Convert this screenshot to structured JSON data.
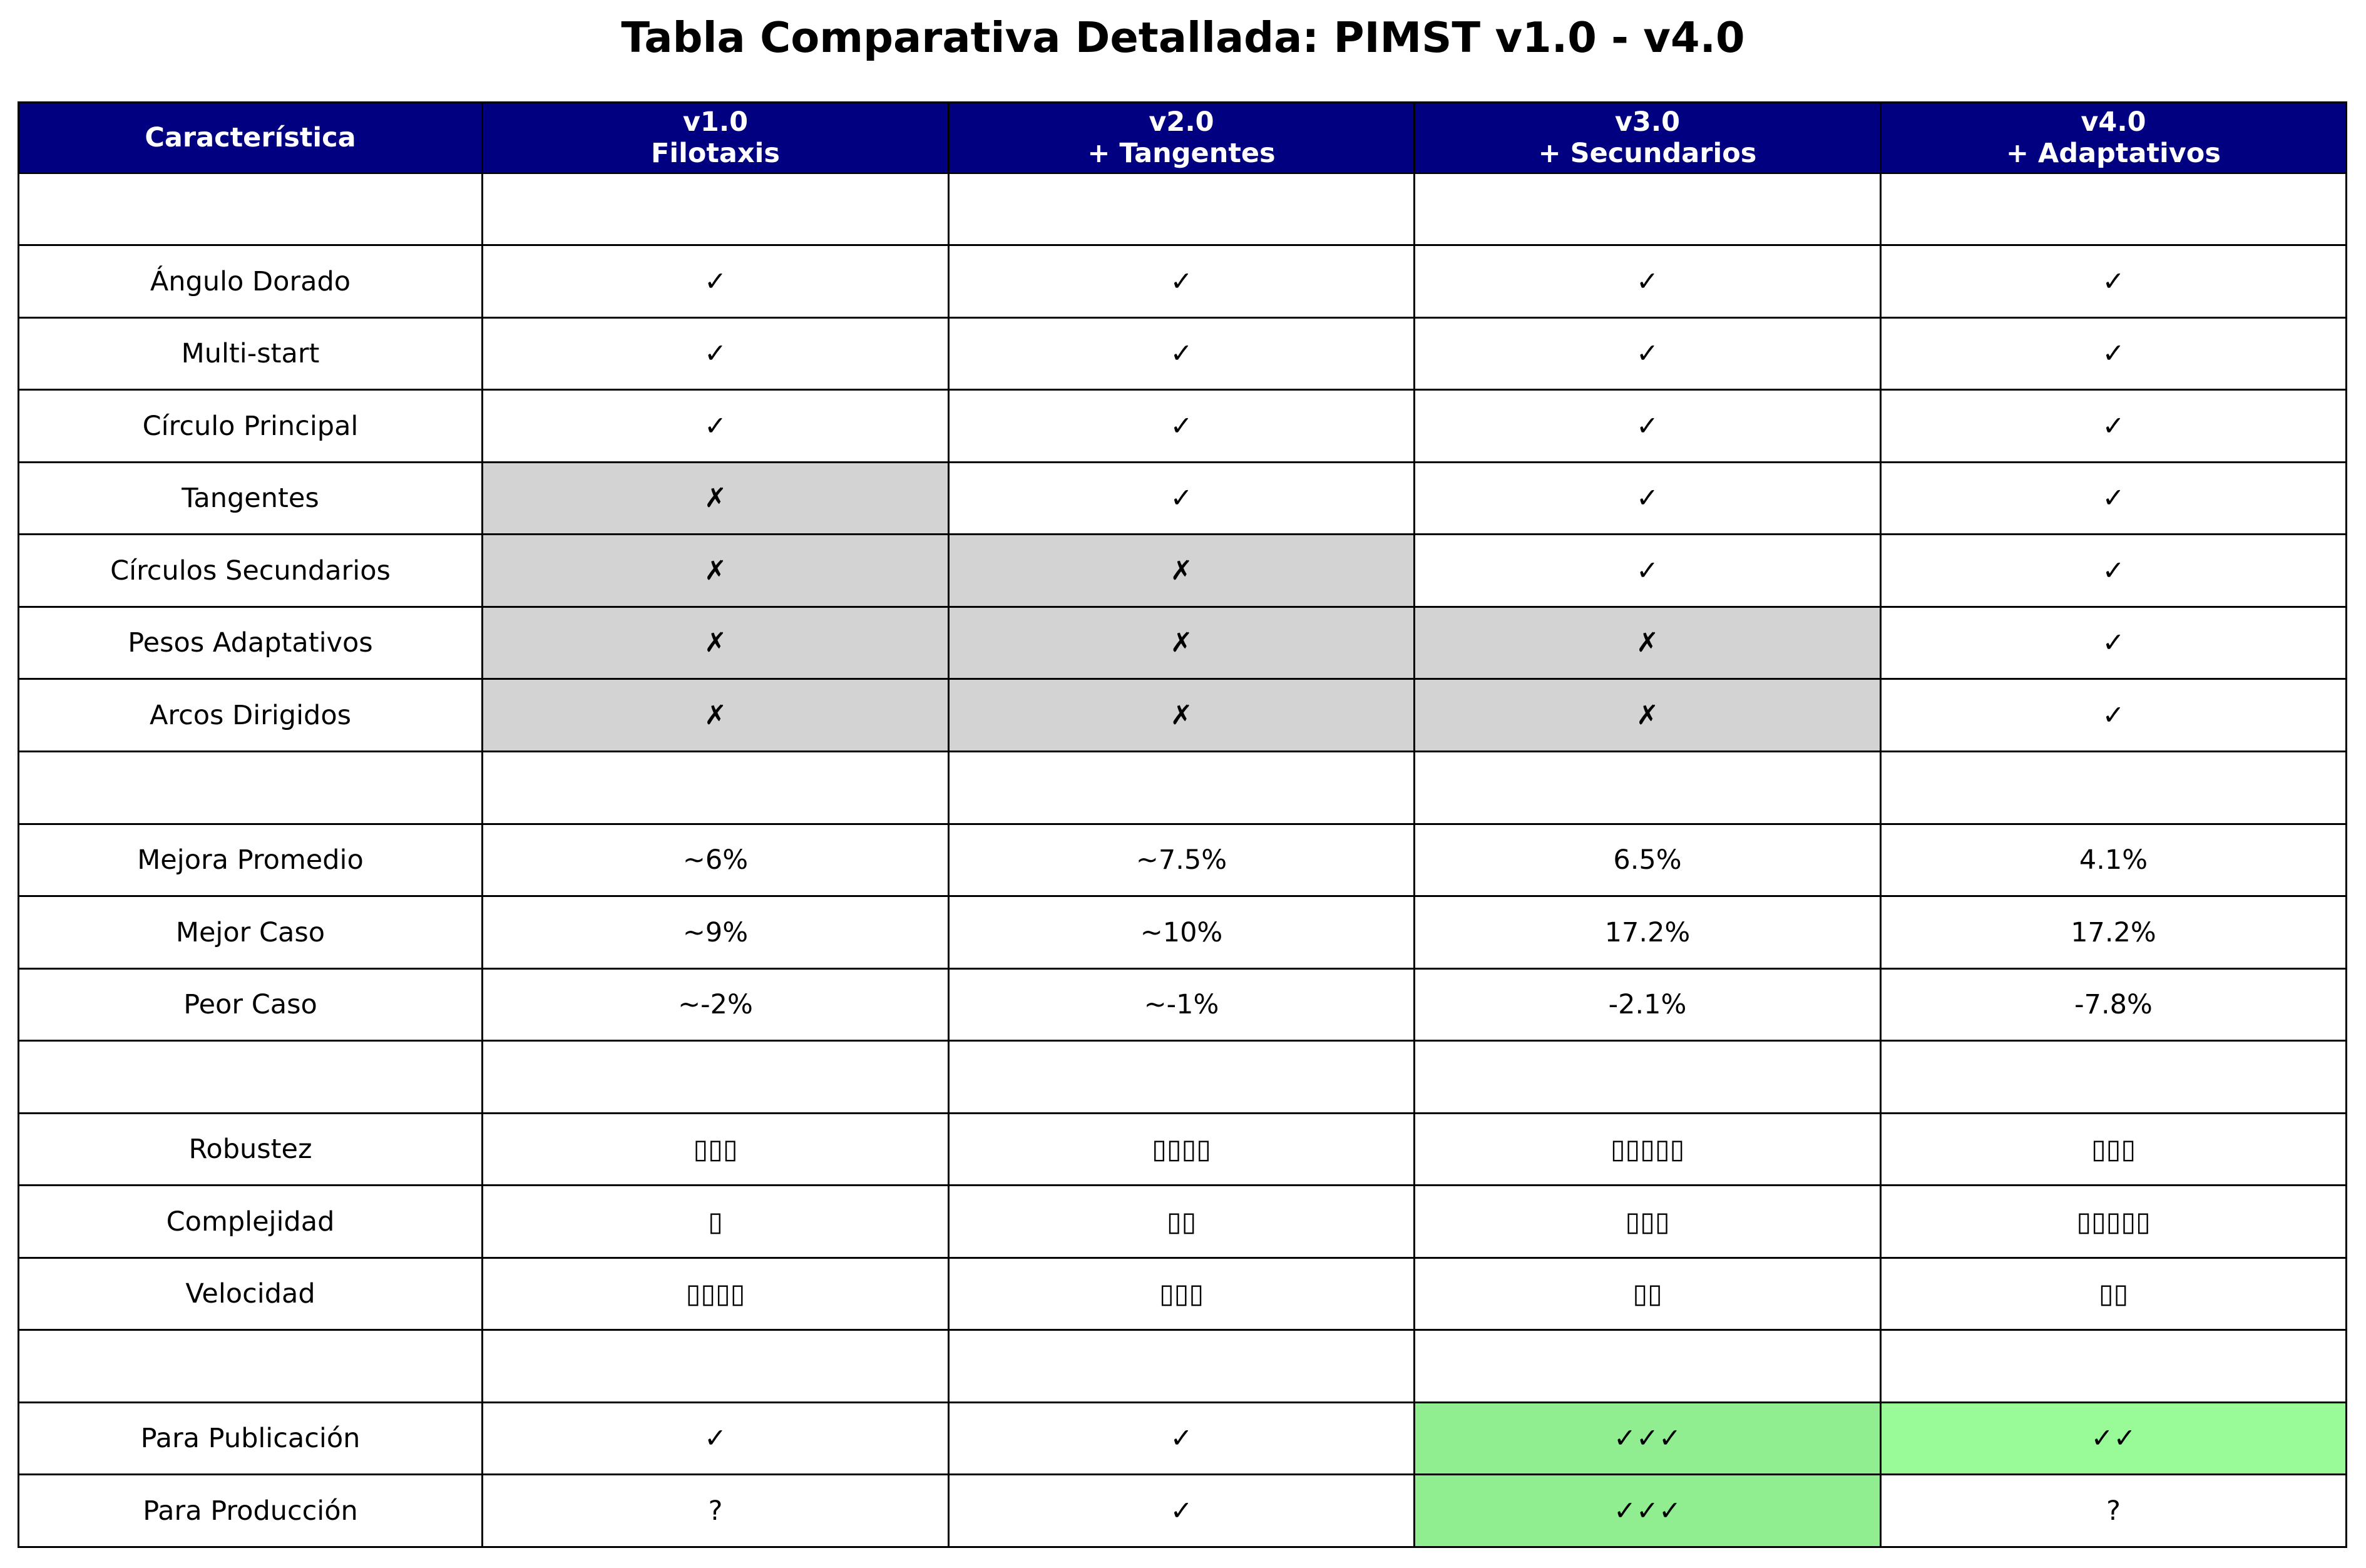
{
  "title": "Tabla Comparativa Detallada: PIMST v1.0 - v4.0",
  "colors": {
    "header_bg": "#000080",
    "header_text": "#ffffff",
    "missing_bg": "#d3d3d3",
    "best_bg": "#90ee90",
    "good_bg": "#98fb98",
    "default_bg": "#ffffff",
    "border": "#000000"
  },
  "chart_data": {
    "type": "table",
    "title": "Tabla Comparativa Detallada: PIMST v1.0 - v4.0",
    "columns": [
      {
        "line1": "Característica",
        "line2": ""
      },
      {
        "line1": "v1.0",
        "line2": "Filotaxis"
      },
      {
        "line1": "v2.0",
        "line2": "+ Tangentes"
      },
      {
        "line1": "v3.0",
        "line2": "+ Secundarios"
      },
      {
        "line1": "v4.0",
        "line2": "+ Adaptativos"
      }
    ],
    "rows": [
      {
        "label": "",
        "values": [
          "",
          "",
          "",
          ""
        ],
        "fills": [
          "default",
          "default",
          "default",
          "default"
        ]
      },
      {
        "label": "Ángulo Dorado",
        "values": [
          "✓",
          "✓",
          "✓",
          "✓"
        ],
        "fills": [
          "default",
          "default",
          "default",
          "default"
        ]
      },
      {
        "label": "Multi-start",
        "values": [
          "✓",
          "✓",
          "✓",
          "✓"
        ],
        "fills": [
          "default",
          "default",
          "default",
          "default"
        ]
      },
      {
        "label": "Círculo Principal",
        "values": [
          "✓",
          "✓",
          "✓",
          "✓"
        ],
        "fills": [
          "default",
          "default",
          "default",
          "default"
        ]
      },
      {
        "label": "Tangentes",
        "values": [
          "✗",
          "✓",
          "✓",
          "✓"
        ],
        "fills": [
          "missing",
          "default",
          "default",
          "default"
        ]
      },
      {
        "label": "Círculos Secundarios",
        "values": [
          "✗",
          "✗",
          "✓",
          "✓"
        ],
        "fills": [
          "missing",
          "missing",
          "default",
          "default"
        ]
      },
      {
        "label": "Pesos Adaptativos",
        "values": [
          "✗",
          "✗",
          "✗",
          "✓"
        ],
        "fills": [
          "missing",
          "missing",
          "missing",
          "default"
        ]
      },
      {
        "label": "Arcos Dirigidos",
        "values": [
          "✗",
          "✗",
          "✗",
          "✓"
        ],
        "fills": [
          "missing",
          "missing",
          "missing",
          "default"
        ]
      },
      {
        "label": "",
        "values": [
          "",
          "",
          "",
          ""
        ],
        "fills": [
          "default",
          "default",
          "default",
          "default"
        ]
      },
      {
        "label": "Mejora Promedio",
        "values": [
          "~6%",
          "~7.5%",
          "6.5%",
          "4.1%"
        ],
        "fills": [
          "default",
          "default",
          "default",
          "default"
        ]
      },
      {
        "label": "Mejor Caso",
        "values": [
          "~9%",
          "~10%",
          "17.2%",
          "17.2%"
        ],
        "fills": [
          "default",
          "default",
          "default",
          "default"
        ]
      },
      {
        "label": "Peor Caso",
        "values": [
          "~-2%",
          "~-1%",
          "-2.1%",
          "-7.8%"
        ],
        "fills": [
          "default",
          "default",
          "default",
          "default"
        ]
      },
      {
        "label": "",
        "values": [
          "",
          "",
          "",
          ""
        ],
        "fills": [
          "default",
          "default",
          "default",
          "default"
        ]
      },
      {
        "label": "Robustez",
        "values": [
          "▯▯▯",
          "▯▯▯▯",
          "▯▯▯▯▯",
          "▯▯▯"
        ],
        "fills": [
          "default",
          "default",
          "default",
          "default"
        ]
      },
      {
        "label": "Complejidad",
        "values": [
          "▯",
          "▯▯",
          "▯▯▯",
          "▯▯▯▯▯"
        ],
        "fills": [
          "default",
          "default",
          "default",
          "default"
        ]
      },
      {
        "label": "Velocidad",
        "values": [
          "▯▯▯▯",
          "▯▯▯",
          "▯▯",
          "▯▯"
        ],
        "fills": [
          "default",
          "default",
          "default",
          "default"
        ]
      },
      {
        "label": "",
        "values": [
          "",
          "",
          "",
          ""
        ],
        "fills": [
          "default",
          "default",
          "default",
          "default"
        ]
      },
      {
        "label": "Para Publicación",
        "values": [
          "✓",
          "✓",
          "✓✓✓",
          "✓✓"
        ],
        "fills": [
          "default",
          "default",
          "best",
          "good"
        ]
      },
      {
        "label": "Para Producción",
        "values": [
          "?",
          "✓",
          "✓✓✓",
          "?"
        ],
        "fills": [
          "default",
          "default",
          "best",
          "default"
        ]
      }
    ]
  }
}
